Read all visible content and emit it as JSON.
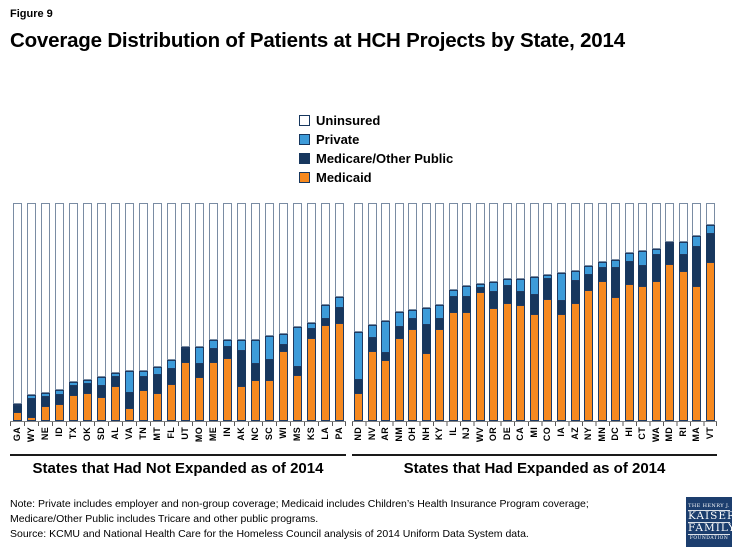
{
  "figure_label": "Figure 9",
  "title": "Coverage Distribution of Patients at HCH Projects by State, 2014",
  "legend": [
    {
      "label": "Uninsured",
      "fill": "#FFFFFF",
      "border": "#17375E"
    },
    {
      "label": "Private",
      "fill": "#3D9BD9",
      "border": "#17375E"
    },
    {
      "label": "Medicare/Other Public",
      "fill": "#17375E",
      "border": "#17375E"
    },
    {
      "label": "Medicaid",
      "fill": "#F6891F",
      "border": "#17375E"
    }
  ],
  "colors": {
    "series": {
      "Uninsured": {
        "fill": "#FFFFFF",
        "border": "#7A8CA3"
      },
      "Private": {
        "fill": "#3D9BD9",
        "border": "#1F3A61"
      },
      "Medicare/Other Public": {
        "fill": "#17375E",
        "border": "#17375E"
      },
      "Medicaid": {
        "fill": "#F6891F",
        "border": "#1F3A61"
      }
    },
    "axis": "#808080",
    "tick": "#595959",
    "section_rule": "#1A1A1A",
    "logo_navy": "#1C3E6E"
  },
  "chart_data": {
    "type": "bar",
    "stacked": true,
    "unit": "percent of patients (100% stacked)",
    "ylim": [
      0,
      100
    ],
    "grid": false,
    "legend_position": "top-center",
    "render_order_top_to_bottom": [
      "Uninsured",
      "Private",
      "Medicare/Other Public",
      "Medicaid"
    ],
    "groups": [
      {
        "label": "States that Had Not Expanded as of 2014",
        "categories": [
          "GA",
          "WY",
          "NE",
          "ID",
          "TX",
          "OK",
          "SD",
          "AL",
          "VA",
          "TN",
          "MT",
          "FL",
          "UT",
          "MO",
          "ME",
          "IN",
          "AK",
          "NC",
          "SC",
          "WI",
          "MS",
          "KS",
          "LA",
          "PA"
        ],
        "series": [
          {
            "name": "Medicaid",
            "values": [
              4,
              2,
              7,
              8,
              12,
              13,
              11,
              16,
              6,
              14,
              13,
              17,
              27,
              20,
              27,
              29,
              16,
              19,
              19,
              32,
              21,
              38,
              44,
              45
            ]
          },
          {
            "name": "Medicare/Other Public",
            "values": [
              3,
              8,
              4,
              4,
              4,
              4,
              5,
              4,
              7,
              6,
              8,
              7,
              6,
              6,
              6,
              5,
              16,
              7,
              9,
              3,
              4,
              4,
              3,
              7
            ]
          },
          {
            "name": "Private",
            "values": [
              1,
              2,
              2,
              2,
              2,
              2,
              4,
              2,
              10,
              3,
              4,
              4,
              1,
              8,
              4,
              3,
              5,
              11,
              11,
              5,
              18,
              3,
              6,
              5
            ]
          },
          {
            "name": "Uninsured",
            "values": [
              92,
              88,
              87,
              86,
              82,
              81,
              80,
              78,
              77,
              77,
              75,
              72,
              66,
              66,
              63,
              63,
              63,
              63,
              61,
              60,
              57,
              55,
              47,
              43
            ]
          }
        ]
      },
      {
        "label": "States that Had Expanded as of 2014",
        "categories": [
          "ND",
          "NV",
          "AR",
          "NM",
          "OH",
          "NH",
          "KY",
          "IL",
          "NJ",
          "WV",
          "OR",
          "DE",
          "CA",
          "MI",
          "CO",
          "IA",
          "AZ",
          "NY",
          "MN",
          "DC",
          "HI",
          "CT",
          "WA",
          "MD",
          "RI",
          "MA",
          "VT"
        ],
        "series": [
          {
            "name": "Medicaid",
            "values": [
              13,
              32,
              28,
              38,
              42,
              31,
              42,
              50,
              50,
              59,
              52,
              54,
              53,
              49,
              56,
              49,
              54,
              60,
              64,
              57,
              63,
              62,
              64,
              72,
              69,
              62,
              73
            ]
          },
          {
            "name": "Medicare/Other Public",
            "values": [
              6,
              6,
              3,
              5,
              5,
              13,
              5,
              7,
              7,
              2,
              7,
              8,
              6,
              9,
              9,
              6,
              10,
              7,
              6,
              13,
              10,
              9,
              12,
              9,
              7,
              18,
              13
            ]
          },
          {
            "name": "Private",
            "values": [
              22,
              6,
              15,
              7,
              4,
              8,
              6,
              3,
              5,
              2,
              5,
              3,
              6,
              8,
              2,
              13,
              5,
              4,
              3,
              4,
              4,
              7,
              3,
              1,
              6,
              5,
              4
            ]
          },
          {
            "name": "Uninsured",
            "values": [
              59,
              56,
              54,
              50,
              49,
              48,
              47,
              40,
              38,
              37,
              36,
              35,
              35,
              34,
              33,
              32,
              31,
              29,
              27,
              26,
              23,
              22,
              21,
              18,
              18,
              15,
              10
            ]
          }
        ]
      }
    ]
  },
  "footer": {
    "note_line1": "Note: Private includes employer and non-group coverage; Medicaid includes Children’s Health Insurance Program coverage;",
    "note_line2": "Medicare/Other Public includes Tricare and other public programs.",
    "source_line": "Source: KCMU and National Health Care for the Homeless Council analysis of 2014 Uniform Data System data.",
    "logo": {
      "top": "THE HENRY J.",
      "line1": "KAISER",
      "line2": "FAMILY",
      "bottom": "FOUNDATION"
    }
  }
}
